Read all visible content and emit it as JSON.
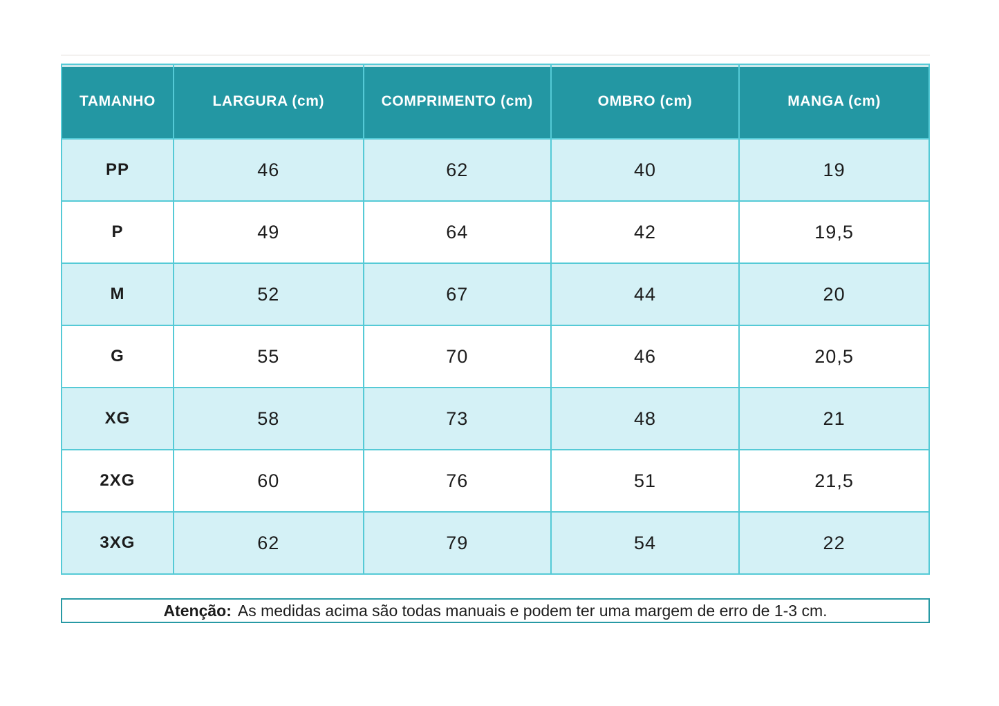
{
  "chart_data": {
    "type": "table",
    "columns": [
      "TAMANHO",
      "LARGURA (cm)",
      "COMPRIMENTO (cm)",
      "OMBRO (cm)",
      "MANGA (cm)"
    ],
    "rows": [
      {
        "size": "PP",
        "values": [
          "46",
          "62",
          "40",
          "19"
        ]
      },
      {
        "size": "P",
        "values": [
          "49",
          "64",
          "42",
          "19,5"
        ]
      },
      {
        "size": "M",
        "values": [
          "52",
          "67",
          "44",
          "20"
        ]
      },
      {
        "size": "G",
        "values": [
          "55",
          "70",
          "46",
          "20,5"
        ]
      },
      {
        "size": "XG",
        "values": [
          "58",
          "73",
          "48",
          "21"
        ]
      },
      {
        "size": "2XG",
        "values": [
          "60",
          "76",
          "51",
          "21,5"
        ]
      },
      {
        "size": "3XG",
        "values": [
          "62",
          "79",
          "54",
          "22"
        ]
      }
    ],
    "layout_hints": {
      "striped_rows": true,
      "first_row_striped": true,
      "header_style": "teal-banner"
    }
  },
  "note": {
    "label": "Atenção:",
    "text": "As medidas acima são todas manuais e podem ter uma margem de erro de 1-3 cm."
  },
  "colors": {
    "header_bg": "#2397A3",
    "header_text": "#FFFFFF",
    "row_stripe_bg": "#D4F1F6",
    "row_plain_bg": "#FFFFFF",
    "grid_border": "#55CAD6",
    "note_border": "#2799A4",
    "body_text": "#1C1C1C"
  }
}
